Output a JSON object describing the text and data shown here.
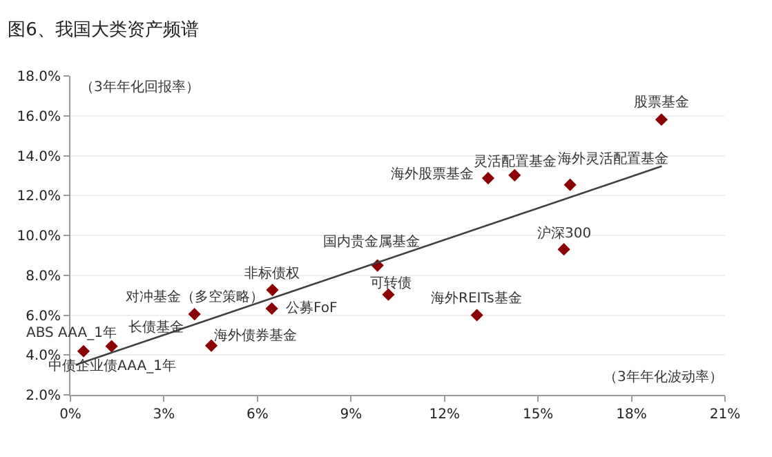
{
  "chart_data": {
    "type": "scatter",
    "title": "图6、我国大类资产频谱",
    "xlabel": "（3年年化波动率）",
    "ylabel": "（3年年化回报率）",
    "series": [
      {
        "color": "#8b0000",
        "marker": "diamond",
        "x": [
          0.42,
          1.32,
          3.98,
          4.52,
          6.48,
          6.46,
          9.85,
          10.2,
          13.4,
          14.25,
          16.03,
          15.83,
          13.04,
          18.96
        ],
        "values": [
          4.19,
          4.44,
          6.05,
          4.47,
          7.26,
          6.33,
          8.49,
          7.03,
          12.87,
          13.02,
          12.54,
          9.3,
          6.0,
          15.81
        ]
      },
      {
        "type": "line",
        "color": "#404040",
        "marker": "none",
        "line_style": "solid",
        "x": [
          0.17,
          18.97
        ],
        "values": [
          3.51,
          13.47
        ]
      }
    ],
    "annotations": [
      {
        "text": "ABS AAA_1年",
        "x": 0.42,
        "y": 4.19
      },
      {
        "text": "长债基金",
        "x": 1.32,
        "y": 4.44
      },
      {
        "text": "对冲基金（多空策略）",
        "x": 3.98,
        "y": 6.05
      },
      {
        "text": "海外债券基金",
        "x": 4.52,
        "y": 4.47
      },
      {
        "text": "非标债权",
        "x": 6.48,
        "y": 7.26
      },
      {
        "text": "公募FoF",
        "x": 6.46,
        "y": 6.33
      },
      {
        "text": "国内贵金属基金",
        "x": 9.85,
        "y": 8.49
      },
      {
        "text": "可转债",
        "x": 10.2,
        "y": 7.03
      },
      {
        "text": "海外股票基金",
        "x": 13.4,
        "y": 12.87
      },
      {
        "text": "灵活配置基金",
        "x": 14.25,
        "y": 13.02
      },
      {
        "text": "海外灵活配置基金",
        "x": 16.03,
        "y": 12.54
      },
      {
        "text": "沪深300",
        "x": 15.83,
        "y": 9.3
      },
      {
        "text": "海外REITs基金",
        "x": 13.04,
        "y": 6.0
      },
      {
        "text": "股票基金",
        "x": 18.96,
        "y": 15.81
      },
      {
        "text": "中债企业债AAA_1年",
        "x": 0.42,
        "y": 4.19
      }
    ],
    "xlim": [
      0,
      21
    ],
    "xticks": [
      {
        "value": 0,
        "label": "0%"
      },
      {
        "value": 3,
        "label": "3%"
      },
      {
        "value": 6,
        "label": "6%"
      },
      {
        "value": 9,
        "label": "9%"
      },
      {
        "value": 12,
        "label": "12%"
      },
      {
        "value": 15,
        "label": "15%"
      },
      {
        "value": 18,
        "label": "18%"
      },
      {
        "value": 21,
        "label": "21%"
      }
    ],
    "ylim": [
      2,
      18
    ],
    "yticks": [
      {
        "value": 2,
        "label": "2.0%"
      },
      {
        "value": 4,
        "label": "4.0%"
      },
      {
        "value": 6,
        "label": "6.0%"
      },
      {
        "value": 8,
        "label": "8.0%"
      },
      {
        "value": 10,
        "label": "10.0%"
      },
      {
        "value": 12,
        "label": "12.0%"
      },
      {
        "value": 14,
        "label": "14.0%"
      },
      {
        "value": 16,
        "label": "16.0%"
      },
      {
        "value": 18,
        "label": "18.0%"
      }
    ],
    "grid": "y"
  }
}
